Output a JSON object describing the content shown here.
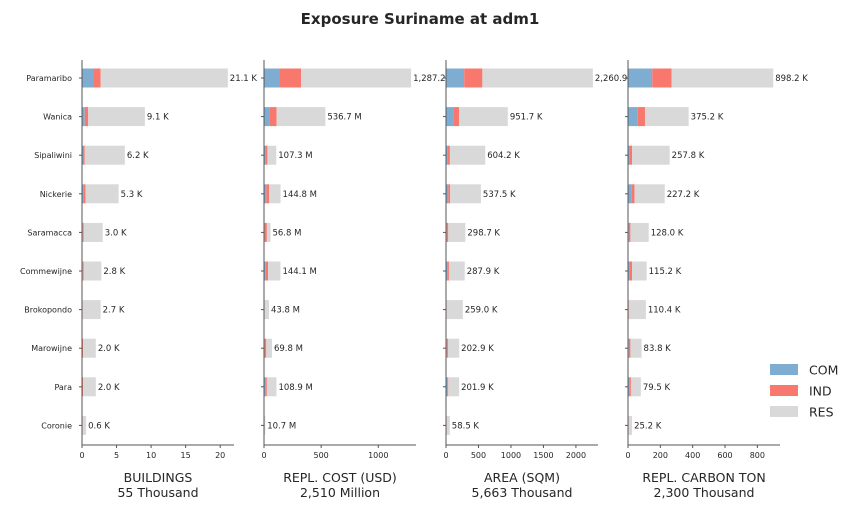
{
  "chart_data": {
    "type": "bar",
    "orientation": "horizontal",
    "stacked": true,
    "title": "Exposure Suriname at adm1",
    "categories": [
      "Paramaribo",
      "Wanica",
      "Sipaliwini",
      "Nickerie",
      "Saramacca",
      "Commewijne",
      "Brokopondo",
      "Marowijne",
      "Para",
      "Coronie"
    ],
    "legend": {
      "position": "right",
      "items": [
        {
          "name": "COM",
          "color": "#7fadd1"
        },
        {
          "name": "IND",
          "color": "#f8786e"
        },
        {
          "name": "RES",
          "color": "#d9d9d9"
        }
      ]
    },
    "panels": [
      {
        "xlabel": "BUILDINGS",
        "subtitle": "55 Thousand",
        "xlim": [
          0,
          22
        ],
        "xticks": [
          0,
          5,
          10,
          15,
          20
        ],
        "tick_labels": [
          "0",
          "5",
          "10",
          "15",
          "20"
        ],
        "series": [
          {
            "name": "COM",
            "values": [
              1.6,
              0.4,
              0.15,
              0.2,
              0.1,
              0.1,
              0.05,
              0.05,
              0.05,
              0.05
            ]
          },
          {
            "name": "IND",
            "values": [
              1.1,
              0.5,
              0.25,
              0.3,
              0.15,
              0.15,
              0.05,
              0.1,
              0.1,
              0.05
            ]
          },
          {
            "name": "RES",
            "values": [
              18.4,
              8.2,
              5.8,
              4.8,
              2.75,
              2.55,
              2.6,
              1.85,
              1.85,
              0.5
            ]
          }
        ],
        "labels": [
          "21.1 K",
          "9.1 K",
          "6.2 K",
          "5.3 K",
          "3.0 K",
          "2.8 K",
          "2.7 K",
          "2.0 K",
          "2.0 K",
          "0.6 K"
        ]
      },
      {
        "xlabel": "REPL. COST (USD)",
        "subtitle": "2,510 Million",
        "xlim": [
          0,
          1330
        ],
        "xticks": [
          0,
          500,
          1000
        ],
        "tick_labels": [
          "0",
          "500",
          "1000"
        ],
        "series": [
          {
            "name": "COM",
            "values": [
              140,
              45,
              10,
              20,
              5,
              15,
              3,
              5,
              10,
              1
            ]
          },
          {
            "name": "IND",
            "values": [
              185,
              65,
              20,
              25,
              20,
              20,
              2,
              15,
              15,
              1
            ]
          },
          {
            "name": "RES",
            "values": [
              962.2,
              426.7,
              77.3,
              99.8,
              31.8,
              109.1,
              38.8,
              49.8,
              83.9,
              8.7
            ]
          }
        ],
        "labels": [
          "1,287.2 M",
          "536.7 M",
          "107.3 M",
          "144.8 M",
          "56.8 M",
          "144.1 M",
          "43.8 M",
          "69.8 M",
          "108.9 M",
          "10.7 M"
        ]
      },
      {
        "xlabel": "AREA (SQM)",
        "subtitle": "5,663 Thousand",
        "xlim": [
          0,
          2340
        ],
        "xticks": [
          0,
          500,
          1000,
          1500,
          2000
        ],
        "tick_labels": [
          "0",
          "500",
          "1000",
          "1500",
          "2000"
        ],
        "series": [
          {
            "name": "COM",
            "values": [
              280,
              110,
              25,
              35,
              10,
              20,
              5,
              10,
              20,
              5
            ]
          },
          {
            "name": "IND",
            "values": [
              280,
              90,
              35,
              30,
              25,
              25,
              5,
              20,
              15,
              5
            ]
          },
          {
            "name": "RES",
            "values": [
              1700.9,
              751.7,
              544.2,
              472.5,
              263.7,
              242.9,
              249.0,
              172.9,
              166.9,
              48.5
            ]
          }
        ],
        "labels": [
          "2,260.9 K",
          "951.7 K",
          "604.2 K",
          "537.5 K",
          "298.7 K",
          "287.9 K",
          "259.0 K",
          "202.9 K",
          "201.9 K",
          "58.5 K"
        ]
      },
      {
        "xlabel": "REPL. CARBON TON",
        "subtitle": "2,300 Thousand",
        "xlim": [
          0,
          940
        ],
        "xticks": [
          0,
          200,
          400,
          600,
          800
        ],
        "tick_labels": [
          "0",
          "200",
          "400",
          "600",
          "800"
        ],
        "series": [
          {
            "name": "COM",
            "values": [
              150,
              60,
              10,
              20,
              5,
              10,
              3,
              5,
              10,
              2
            ]
          },
          {
            "name": "IND",
            "values": [
              120,
              45,
              15,
              20,
              10,
              15,
              2,
              10,
              8,
              2
            ]
          },
          {
            "name": "RES",
            "values": [
              628.2,
              270.2,
              232.8,
              187.2,
              113.0,
              90.2,
              105.4,
              68.8,
              61.5,
              21.2
            ]
          }
        ],
        "labels": [
          "898.2 K",
          "375.2 K",
          "257.8 K",
          "227.2 K",
          "128.0 K",
          "115.2 K",
          "110.4 K",
          "83.8 K",
          "79.5 K",
          "25.2 K"
        ]
      }
    ]
  }
}
